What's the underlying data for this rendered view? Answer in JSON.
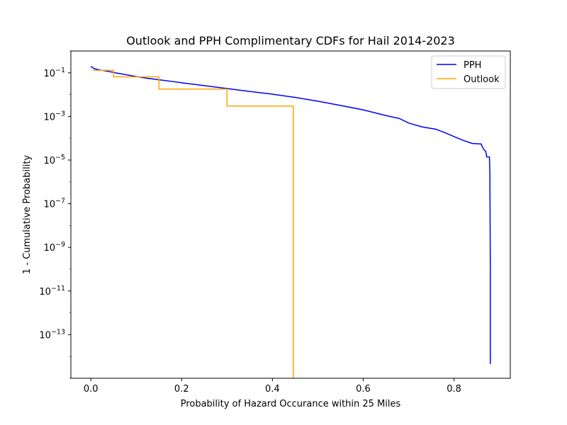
{
  "chart_data": {
    "type": "line",
    "title": "Outlook and PPH Complimentary CDFs for Hail 2014-2023",
    "xlabel": "Probability of Hazard Occurance within 25 Miles",
    "ylabel": "1 - Cumulative Probability",
    "yscale": "log",
    "xlim": [
      -0.044,
      0.924
    ],
    "ylim": [
      1e-15,
      1
    ],
    "x_ticks": [
      0.0,
      0.2,
      0.4,
      0.6,
      0.8
    ],
    "x_tick_labels": [
      "0.0",
      "0.2",
      "0.4",
      "0.6",
      "0.8"
    ],
    "y_ticks": [
      1e-13,
      1e-11,
      1e-09,
      1e-07,
      1e-05,
      0.001,
      0.1
    ],
    "y_tick_labels": [
      {
        "base": "10",
        "exp": "−13"
      },
      {
        "base": "10",
        "exp": "−11"
      },
      {
        "base": "10",
        "exp": "−9"
      },
      {
        "base": "10",
        "exp": "−7"
      },
      {
        "base": "10",
        "exp": "−5"
      },
      {
        "base": "10",
        "exp": "−3"
      },
      {
        "base": "10",
        "exp": "−1"
      }
    ],
    "grid": false,
    "legend_position": "top-right",
    "series": [
      {
        "name": "PPH",
        "color": "#0000ff",
        "points": [
          [
            0.0,
            0.2
          ],
          [
            0.005,
            0.165
          ],
          [
            0.01,
            0.15
          ],
          [
            0.02,
            0.135
          ],
          [
            0.04,
            0.115
          ],
          [
            0.06,
            0.095
          ],
          [
            0.08,
            0.08
          ],
          [
            0.1,
            0.068
          ],
          [
            0.12,
            0.058
          ],
          [
            0.15,
            0.048
          ],
          [
            0.18,
            0.04
          ],
          [
            0.2,
            0.035
          ],
          [
            0.25,
            0.026
          ],
          [
            0.3,
            0.019
          ],
          [
            0.35,
            0.014
          ],
          [
            0.4,
            0.0105
          ],
          [
            0.45,
            0.0075
          ],
          [
            0.5,
            0.005
          ],
          [
            0.55,
            0.0032
          ],
          [
            0.6,
            0.002
          ],
          [
            0.65,
            0.0011
          ],
          [
            0.68,
            0.0008
          ],
          [
            0.7,
            0.0005
          ],
          [
            0.73,
            0.00033
          ],
          [
            0.76,
            0.00026
          ],
          [
            0.78,
            0.00018
          ],
          [
            0.8,
            0.00012
          ],
          [
            0.82,
            8e-05
          ],
          [
            0.84,
            5.8e-05
          ],
          [
            0.86,
            5.5e-05
          ],
          [
            0.862,
            4.2e-05
          ],
          [
            0.866,
            3e-05
          ],
          [
            0.87,
            2.5e-05
          ],
          [
            0.872,
            1.4e-05
          ],
          [
            0.878,
            1.4e-05
          ],
          [
            0.879,
            3e-06
          ],
          [
            0.88,
            1e-10
          ],
          [
            0.88,
            4.5e-15
          ]
        ]
      },
      {
        "name": "Outlook",
        "color": "#ffa500",
        "points": [
          [
            0.005,
            0.13
          ],
          [
            0.05,
            0.13
          ],
          [
            0.05,
            0.065
          ],
          [
            0.15,
            0.065
          ],
          [
            0.15,
            0.018
          ],
          [
            0.3,
            0.018
          ],
          [
            0.3,
            0.003
          ],
          [
            0.446,
            0.003
          ],
          [
            0.446,
            1e-15
          ]
        ]
      }
    ]
  }
}
